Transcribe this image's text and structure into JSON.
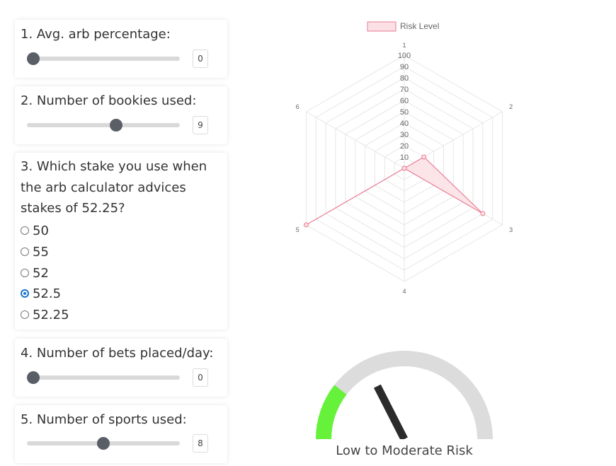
{
  "questions": {
    "q1": {
      "title": "1. Avg. arb percentage:",
      "value": "0",
      "fraction": 0.0
    },
    "q2": {
      "title": "2. Number of bookies used:",
      "value": "9",
      "fraction": 0.59
    },
    "q3": {
      "title_lines": [
        "3. Which stake you use when",
        "the arb calculator advices",
        "stakes of 52.25?"
      ],
      "options": [
        "50",
        "55",
        "52",
        "52.5",
        "52.25"
      ],
      "selected": "52.5"
    },
    "q4": {
      "title": "4. Number of bets placed/day:",
      "value": "0",
      "fraction": 0.0
    },
    "q5": {
      "title": "5. Number of sports used:",
      "value": "8",
      "fraction": 0.5
    }
  },
  "chart_data": {
    "type": "radar",
    "categories": [
      "1",
      "2",
      "3",
      "4",
      "5",
      "6"
    ],
    "series": [
      {
        "name": "Risk Level",
        "values": [
          0,
          20,
          80,
          0,
          100,
          0
        ]
      }
    ],
    "ticks": [
      "10",
      "20",
      "30",
      "40",
      "50",
      "60",
      "70",
      "80",
      "90",
      "100"
    ],
    "rmax": 100,
    "legend": "top-center",
    "colors": {
      "stroke": "#e97d93",
      "fill": "#fbe0e5",
      "grid": "#e6e6e6"
    }
  },
  "gauge": {
    "label": "Low to Moderate Risk",
    "fill_fraction": 0.21,
    "needle_fraction": 0.35,
    "colors": {
      "fill": "#66f23a",
      "track": "#dcdcdc",
      "needle": "#2b2b2b"
    }
  }
}
